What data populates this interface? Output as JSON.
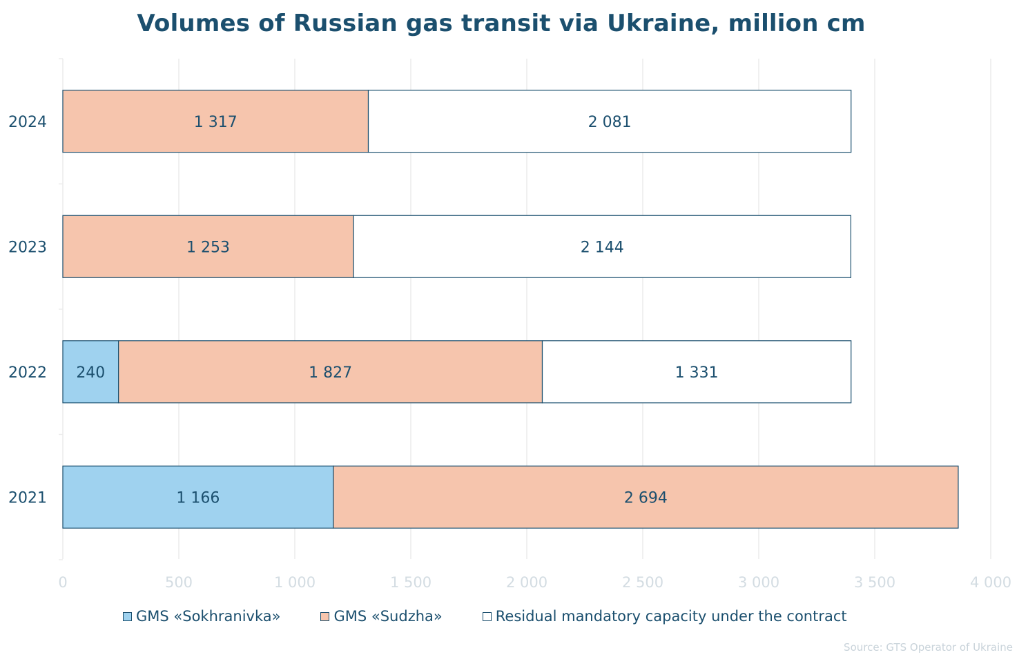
{
  "chart_data": {
    "type": "bar",
    "orientation": "horizontal",
    "stacked": true,
    "title": "Volumes of Russian gas transit via Ukraine, million cm",
    "xlabel": "",
    "ylabel": "",
    "categories": [
      "2024",
      "2023",
      "2022",
      "2021"
    ],
    "series": [
      {
        "name": "GMS «Sokhranivka»",
        "color": "#9fd2ef",
        "values": [
          0,
          0,
          240,
          1166
        ],
        "labels": [
          "",
          "",
          "240",
          "1 166"
        ]
      },
      {
        "name": "GMS «Sudzha»",
        "color": "#f6c5ad",
        "values": [
          1317,
          1253,
          1827,
          2694
        ],
        "labels": [
          "1 317",
          "1 253",
          "1 827",
          "2 694"
        ]
      },
      {
        "name": "Residual mandatory capacity under the contract",
        "color": "#ffffff",
        "values": [
          2081,
          2144,
          1331,
          0
        ],
        "labels": [
          "2 081",
          "2 144",
          "1 331",
          ""
        ]
      }
    ],
    "xlim": [
      0,
      4000
    ],
    "xticks": [
      0,
      500,
      1000,
      1500,
      2000,
      2500,
      3000,
      3500,
      4000
    ],
    "xtick_labels": [
      "0",
      "500",
      "1 000",
      "1 500",
      "2 000",
      "2 500",
      "3 000",
      "3 500",
      "4 000"
    ],
    "grid": true,
    "legend_position": "bottom",
    "source": "Source: GTS Operator of Ukraine"
  },
  "colors": {
    "title": "#1b4f6e",
    "text": "#1b4f6e",
    "bar_outline": "#1b4f6e",
    "grid": "#ececec",
    "tick": "#d3dce2"
  }
}
